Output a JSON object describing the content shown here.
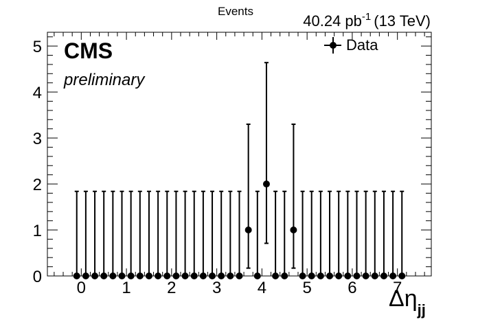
{
  "chart_data": {
    "type": "scatter",
    "header_left": "Events",
    "lumi": {
      "value": "40.24 pb",
      "exponent": "-1",
      "energy": "(13 TeV)"
    },
    "cms_label": "CMS",
    "cms_sublabel": "preliminary",
    "xlabel": {
      "main": "Δη",
      "sub": "jj"
    },
    "ylabel": "",
    "xlim": [
      -0.75,
      7.75
    ],
    "ylim": [
      0,
      5.3
    ],
    "xticks": [
      0,
      1,
      2,
      3,
      4,
      5,
      6,
      7
    ],
    "yticks": [
      0,
      1,
      2,
      3,
      4,
      5
    ],
    "legend": {
      "position": "top-right",
      "entries": [
        {
          "name": "Data",
          "marker": "circle",
          "color": "#000000"
        }
      ]
    },
    "grid": false,
    "bin_width": 0.2,
    "series": [
      {
        "name": "Data",
        "x": [
          -0.1,
          0.1,
          0.3,
          0.5,
          0.7,
          0.9,
          1.1,
          1.3,
          1.5,
          1.7,
          1.9,
          2.1,
          2.3,
          2.5,
          2.7,
          2.9,
          3.1,
          3.3,
          3.5,
          3.7,
          3.9,
          4.1,
          4.3,
          4.5,
          4.7,
          4.9,
          5.1,
          5.3,
          5.5,
          5.7,
          5.9,
          6.1,
          6.3,
          6.5,
          6.7,
          6.9,
          7.1
        ],
        "y": [
          0,
          0,
          0,
          0,
          0,
          0,
          0,
          0,
          0,
          0,
          0,
          0,
          0,
          0,
          0,
          0,
          0,
          0,
          0,
          1,
          0,
          2,
          0,
          0,
          1,
          0,
          0,
          0,
          0,
          0,
          0,
          0,
          0,
          0,
          0,
          0,
          0
        ],
        "err_low": [
          0,
          0,
          0,
          0,
          0,
          0,
          0,
          0,
          0,
          0,
          0,
          0,
          0,
          0,
          0,
          0,
          0,
          0,
          0,
          0.83,
          0,
          1.29,
          0,
          0,
          0.83,
          0,
          0,
          0,
          0,
          0,
          0,
          0,
          0,
          0,
          0,
          0,
          0
        ],
        "err_high": [
          1.84,
          1.84,
          1.84,
          1.84,
          1.84,
          1.84,
          1.84,
          1.84,
          1.84,
          1.84,
          1.84,
          1.84,
          1.84,
          1.84,
          1.84,
          1.84,
          1.84,
          1.84,
          1.84,
          2.3,
          1.84,
          2.64,
          1.84,
          1.84,
          2.3,
          1.84,
          1.84,
          1.84,
          1.84,
          1.84,
          1.84,
          1.84,
          1.84,
          1.84,
          1.84,
          1.84,
          1.84
        ],
        "color": "#000000"
      }
    ]
  }
}
